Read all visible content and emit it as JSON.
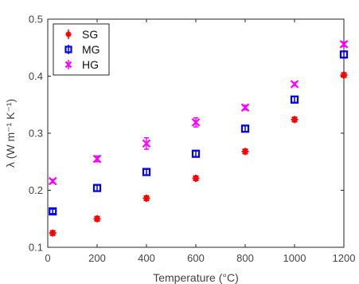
{
  "chart_data": {
    "type": "scatter",
    "xlabel": "Temperature (°C)",
    "ylabel": "λ (W m⁻¹ K⁻¹)",
    "xlim": [
      0,
      1200
    ],
    "ylim": [
      0.1,
      0.5
    ],
    "xticks": [
      0,
      200,
      400,
      600,
      800,
      1000,
      1200
    ],
    "yticks": [
      0.1,
      0.2,
      0.3,
      0.4,
      0.5
    ],
    "xtick_labels": [
      "0",
      "200",
      "400",
      "600",
      "800",
      "1000",
      "1200"
    ],
    "ytick_labels": [
      "0.1",
      "0.2",
      "0.3",
      "0.4",
      "0.5"
    ],
    "grid": false,
    "legend_position": "top-left",
    "series": [
      {
        "name": "SG",
        "color": "#ff0000",
        "marker": "asterisk",
        "points": [
          {
            "x": 20,
            "y": 0.125,
            "err": 0.004
          },
          {
            "x": 200,
            "y": 0.15,
            "err": 0.004
          },
          {
            "x": 400,
            "y": 0.186,
            "err": 0.004
          },
          {
            "x": 600,
            "y": 0.221,
            "err": 0.004
          },
          {
            "x": 800,
            "y": 0.268,
            "err": 0.004
          },
          {
            "x": 1000,
            "y": 0.324,
            "err": 0.004
          },
          {
            "x": 1200,
            "y": 0.402,
            "err": 0.004
          }
        ]
      },
      {
        "name": "MG",
        "color": "#0000ff",
        "marker": "square",
        "points": [
          {
            "x": 20,
            "y": 0.163,
            "err": 0.004
          },
          {
            "x": 200,
            "y": 0.204,
            "err": 0.005
          },
          {
            "x": 400,
            "y": 0.232,
            "err": 0.005
          },
          {
            "x": 600,
            "y": 0.264,
            "err": 0.005
          },
          {
            "x": 800,
            "y": 0.308,
            "err": 0.005
          },
          {
            "x": 1000,
            "y": 0.359,
            "err": 0.005
          },
          {
            "x": 1200,
            "y": 0.438,
            "err": 0.005
          }
        ]
      },
      {
        "name": "HG",
        "color": "#ff00ff",
        "marker": "x",
        "points": [
          {
            "x": 20,
            "y": 0.216,
            "err": 0.003
          },
          {
            "x": 200,
            "y": 0.255,
            "err": 0.005
          },
          {
            "x": 400,
            "y": 0.282,
            "err": 0.01
          },
          {
            "x": 600,
            "y": 0.319,
            "err": 0.008
          },
          {
            "x": 800,
            "y": 0.345,
            "err": 0.004
          },
          {
            "x": 1000,
            "y": 0.386,
            "err": 0.003
          },
          {
            "x": 1200,
            "y": 0.456,
            "err": 0.004
          }
        ]
      }
    ]
  }
}
